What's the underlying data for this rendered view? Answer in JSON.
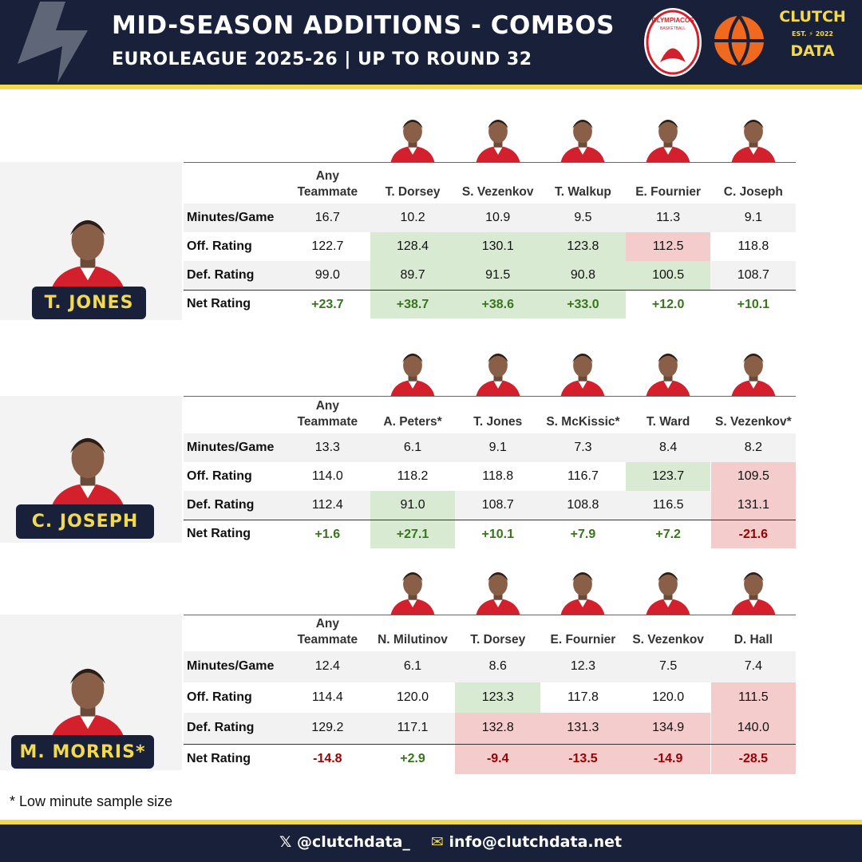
{
  "header": {
    "title": "MID-SEASON ADDITIONS - COMBOS",
    "subtitle": "EUROLEAGUE 2025-26 | UP TO ROUND 32",
    "team_logo": "OLYMPIACOS",
    "team_logo_sub": "BASKETBALL",
    "brand_top": "CLUTCH",
    "brand_est": "EST.",
    "brand_year": "2022",
    "brand_bottom": "DATA"
  },
  "sections": [
    {
      "player": "T. JONES",
      "columns": [
        "Any Teammate",
        "T. Dorsey",
        "S. Vezenkov",
        "T. Walkup",
        "E. Fournier",
        "C. Joseph"
      ],
      "rows": [
        {
          "label": "Minutes/Game",
          "cells": [
            "16.7",
            "10.2",
            "10.9",
            "9.5",
            "11.3",
            "9.1"
          ],
          "highlight": [
            null,
            null,
            null,
            null,
            null,
            null
          ]
        },
        {
          "label": "Off. Rating",
          "cells": [
            "122.7",
            "128.4",
            "130.1",
            "123.8",
            "112.5",
            "118.8"
          ],
          "highlight": [
            null,
            "green",
            "green",
            "green",
            "red",
            null
          ]
        },
        {
          "label": "Def. Rating",
          "cells": [
            "99.0",
            "89.7",
            "91.5",
            "90.8",
            "100.5",
            "108.7"
          ],
          "highlight": [
            null,
            "green",
            "green",
            "green",
            "green",
            null
          ]
        },
        {
          "label": "Net Rating",
          "cells": [
            "+23.7",
            "+38.7",
            "+38.6",
            "+33.0",
            "+12.0",
            "+10.1"
          ],
          "highlight": [
            null,
            "green",
            "green",
            "green",
            null,
            null
          ]
        }
      ]
    },
    {
      "player": "C. JOSEPH",
      "columns": [
        "Any Teammate",
        "A. Peters*",
        "T. Jones",
        "S. McKissic*",
        "T. Ward",
        "S. Vezenkov*"
      ],
      "rows": [
        {
          "label": "Minutes/Game",
          "cells": [
            "13.3",
            "6.1",
            "9.1",
            "7.3",
            "8.4",
            "8.2"
          ],
          "highlight": [
            null,
            null,
            null,
            null,
            null,
            null
          ]
        },
        {
          "label": "Off. Rating",
          "cells": [
            "114.0",
            "118.2",
            "118.8",
            "116.7",
            "123.7",
            "109.5"
          ],
          "highlight": [
            null,
            null,
            null,
            null,
            "green",
            "red"
          ]
        },
        {
          "label": "Def. Rating",
          "cells": [
            "112.4",
            "91.0",
            "108.7",
            "108.8",
            "116.5",
            "131.1"
          ],
          "highlight": [
            null,
            "green",
            null,
            null,
            null,
            "red"
          ]
        },
        {
          "label": "Net Rating",
          "cells": [
            "+1.6",
            "+27.1",
            "+10.1",
            "+7.9",
            "+7.2",
            "-21.6"
          ],
          "highlight": [
            null,
            "green",
            null,
            null,
            null,
            "red"
          ]
        }
      ]
    },
    {
      "player": "M. MORRIS*",
      "columns": [
        "Any Teammate",
        "N. Milutinov",
        "T. Dorsey",
        "E. Fournier",
        "S. Vezenkov",
        "D. Hall"
      ],
      "rows": [
        {
          "label": "Minutes/Game",
          "cells": [
            "12.4",
            "6.1",
            "8.6",
            "12.3",
            "7.5",
            "7.4"
          ],
          "highlight": [
            null,
            null,
            null,
            null,
            null,
            null
          ]
        },
        {
          "label": "Off. Rating",
          "cells": [
            "114.4",
            "120.0",
            "123.3",
            "117.8",
            "120.0",
            "111.5"
          ],
          "highlight": [
            null,
            null,
            "green",
            null,
            null,
            "red"
          ]
        },
        {
          "label": "Def. Rating",
          "cells": [
            "129.2",
            "117.1",
            "132.8",
            "131.3",
            "134.9",
            "140.0"
          ],
          "highlight": [
            null,
            null,
            "red",
            "red",
            "red",
            "red"
          ]
        },
        {
          "label": "Net Rating",
          "cells": [
            "-14.8",
            "+2.9",
            "-9.4",
            "-13.5",
            "-14.9",
            "-28.5"
          ],
          "highlight": [
            null,
            null,
            "red",
            "red",
            "red",
            "red"
          ]
        }
      ]
    }
  ],
  "footnote": "* Low minute sample size",
  "footer": {
    "twitter": "@clutchdata_",
    "email": "info@clutchdata.net"
  }
}
